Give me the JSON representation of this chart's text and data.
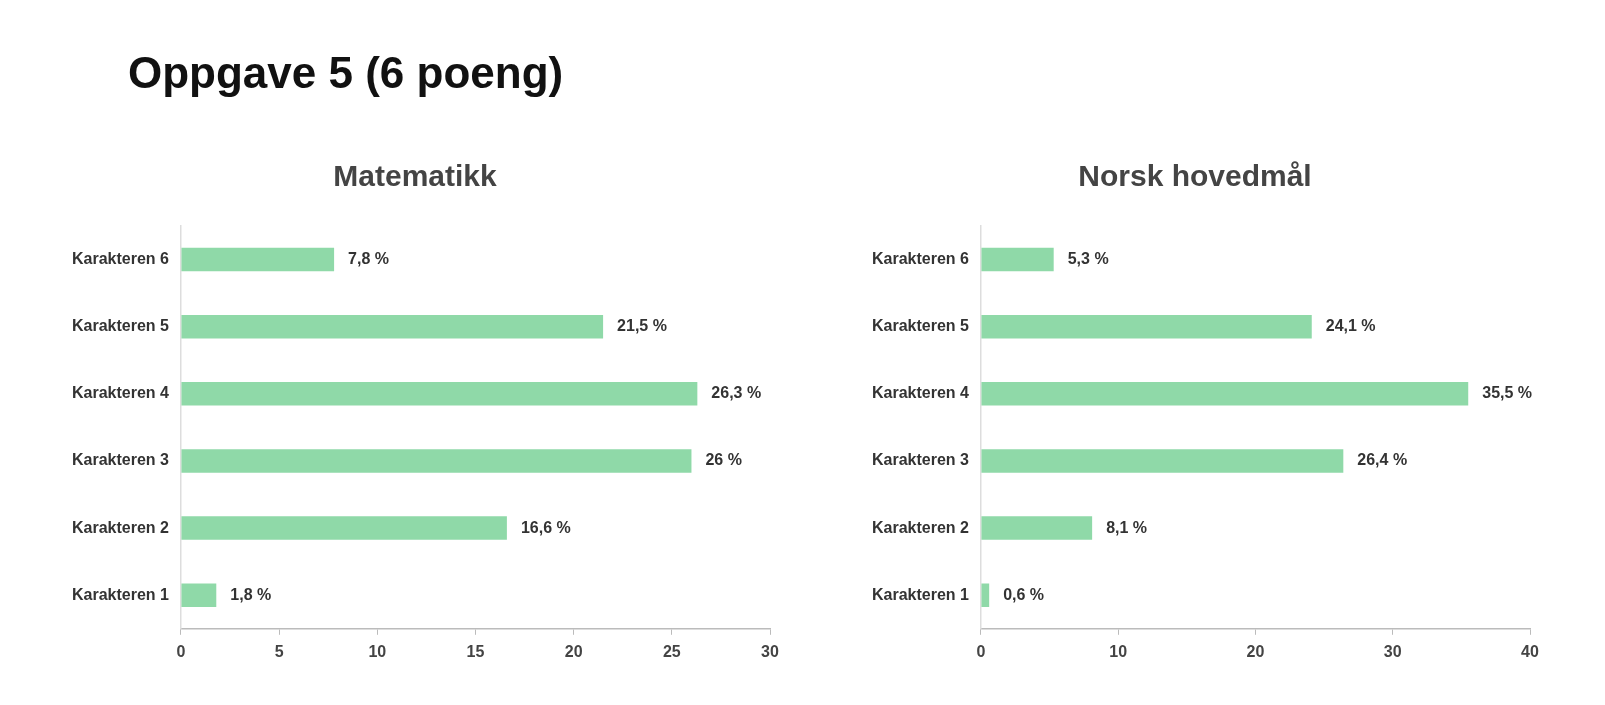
{
  "chart_data": [
    {
      "type": "bar",
      "orientation": "horizontal",
      "title": "Matematikk",
      "annotations": [
        "Oppgave 5 (6 poeng)"
      ],
      "categories": [
        "Karakteren 6",
        "Karakteren 5",
        "Karakteren 4",
        "Karakteren 3",
        "Karakteren 2",
        "Karakteren 1"
      ],
      "values": [
        7.8,
        21.5,
        26.3,
        26,
        16.6,
        1.8
      ],
      "value_labels": [
        "7,8 %",
        "21,5 %",
        "26,3 %",
        "26 %",
        "16,6 %",
        "1,8 %"
      ],
      "color": "#8fd9a8",
      "xlim": [
        0,
        30
      ],
      "xticks": [
        0,
        5,
        10,
        15,
        20,
        25,
        30
      ],
      "grid": false,
      "legend": false
    },
    {
      "type": "bar",
      "orientation": "horizontal",
      "title": "Norsk hovedmål",
      "categories": [
        "Karakteren 6",
        "Karakteren 5",
        "Karakteren 4",
        "Karakteren 3",
        "Karakteren 2",
        "Karakteren 1"
      ],
      "values": [
        5.3,
        24.1,
        35.5,
        26.4,
        8.1,
        0.6
      ],
      "value_labels": [
        "5,3 %",
        "24,1 %",
        "35,5 %",
        "26,4 %",
        "8,1 %",
        "0,6 %"
      ],
      "color": "#8fd9a8",
      "xlim": [
        0,
        40
      ],
      "xticks": [
        0,
        10,
        20,
        30,
        40
      ],
      "grid": false,
      "legend": false
    }
  ]
}
